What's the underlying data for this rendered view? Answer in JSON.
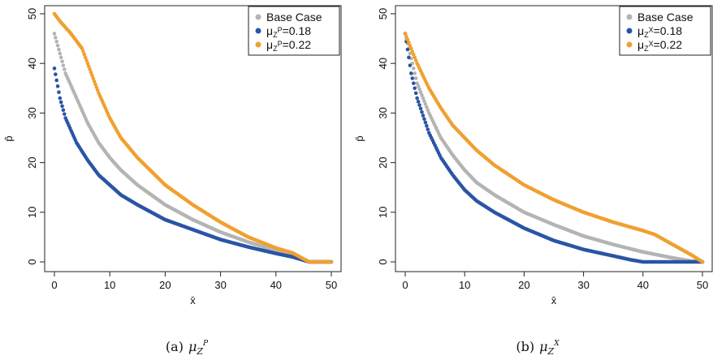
{
  "chart_data": [
    {
      "type": "scatter",
      "xlabel": "x̄",
      "ylabel": "p̄",
      "xlim": [
        0,
        50
      ],
      "ylim": [
        0,
        50
      ],
      "xticks": [
        "0",
        "10",
        "20",
        "30",
        "40",
        "50"
      ],
      "yticks": [
        "0",
        "10",
        "20",
        "30",
        "40",
        "50"
      ],
      "legend_position": "top-right",
      "caption": "(a)",
      "caption_math": {
        "base": "μ",
        "sub": "Z",
        "sup": "P"
      },
      "series": [
        {
          "name": "Base Case",
          "color": "#b4b4b4",
          "x_start": 0,
          "x_end": 46,
          "y_tail_end": 50,
          "points": [
            [
              0,
              46
            ],
            [
              1,
              42
            ],
            [
              2,
              38
            ],
            [
              4,
              33
            ],
            [
              6,
              28
            ],
            [
              8,
              24
            ],
            [
              10,
              21
            ],
            [
              12,
              18.5
            ],
            [
              15,
              15.5
            ],
            [
              20,
              11.5
            ],
            [
              25,
              8.5
            ],
            [
              30,
              6
            ],
            [
              35,
              4
            ],
            [
              40,
              2.3
            ],
            [
              43,
              1.3
            ],
            [
              46,
              0
            ]
          ]
        },
        {
          "name": "μZP=0.18",
          "legend_base": "μ",
          "legend_sub": "Z",
          "legend_sup": "P",
          "legend_value": "=0.18",
          "color": "#2a55a5",
          "x_start": 0,
          "x_end": 46,
          "y_tail_end": 50,
          "points": [
            [
              0,
              39
            ],
            [
              1,
              33
            ],
            [
              2,
              29
            ],
            [
              4,
              24
            ],
            [
              6,
              20.5
            ],
            [
              8,
              17.5
            ],
            [
              10,
              15.5
            ],
            [
              12,
              13.5
            ],
            [
              15,
              11.5
            ],
            [
              20,
              8.5
            ],
            [
              25,
              6.5
            ],
            [
              30,
              4.5
            ],
            [
              35,
              3
            ],
            [
              40,
              1.7
            ],
            [
              43,
              1
            ],
            [
              46,
              0
            ]
          ]
        },
        {
          "name": "μZP=0.22",
          "legend_base": "μ",
          "legend_sub": "Z",
          "legend_sup": "P",
          "legend_value": "=0.22",
          "color": "#f0a030",
          "x_start": 0,
          "x_end": 46,
          "y_tail_end": 50,
          "points": [
            [
              0,
              50
            ],
            [
              1,
              48.5
            ],
            [
              3,
              46
            ],
            [
              5,
              43
            ],
            [
              6,
              40
            ],
            [
              8,
              34
            ],
            [
              10,
              29
            ],
            [
              12,
              25
            ],
            [
              15,
              21
            ],
            [
              20,
              15.5
            ],
            [
              25,
              11.5
            ],
            [
              30,
              8
            ],
            [
              35,
              5
            ],
            [
              40,
              2.8
            ],
            [
              43,
              1.8
            ],
            [
              46,
              0
            ]
          ]
        }
      ]
    },
    {
      "type": "scatter",
      "xlabel": "x̄",
      "ylabel": "p̄",
      "xlim": [
        0,
        50
      ],
      "ylim": [
        0,
        50
      ],
      "xticks": [
        "0",
        "10",
        "20",
        "30",
        "40",
        "50"
      ],
      "yticks": [
        "0",
        "10",
        "20",
        "30",
        "40",
        "50"
      ],
      "legend_position": "top-right",
      "caption": "(b)",
      "caption_math": {
        "base": "μ",
        "sub": "Z",
        "sup": "X"
      },
      "series": [
        {
          "name": "Base Case",
          "color": "#b4b4b4",
          "x_start": 0,
          "x_end": 50,
          "y_tail_end": 50,
          "points": [
            [
              0,
              46
            ],
            [
              1,
              41
            ],
            [
              2,
              36
            ],
            [
              4,
              30
            ],
            [
              6,
              25
            ],
            [
              8,
              21.5
            ],
            [
              10,
              18.5
            ],
            [
              12,
              16
            ],
            [
              15,
              13.5
            ],
            [
              20,
              10
            ],
            [
              25,
              7.5
            ],
            [
              30,
              5.2
            ],
            [
              35,
              3.5
            ],
            [
              40,
              2
            ],
            [
              45,
              0.8
            ],
            [
              48,
              0.2
            ],
            [
              50,
              0
            ]
          ]
        },
        {
          "name": "μZX=0.18",
          "legend_base": "μ",
          "legend_sub": "Z",
          "legend_sup": "X",
          "legend_value": "=0.18",
          "color": "#2a55a5",
          "x_start": 0,
          "x_end": 50,
          "y_tail_end": 50,
          "points": [
            [
              0,
              46
            ],
            [
              1,
              38
            ],
            [
              2,
              33
            ],
            [
              4,
              26
            ],
            [
              6,
              21
            ],
            [
              8,
              17.5
            ],
            [
              10,
              14.5
            ],
            [
              12,
              12.3
            ],
            [
              15,
              10
            ],
            [
              20,
              6.8
            ],
            [
              25,
              4.3
            ],
            [
              30,
              2.5
            ],
            [
              35,
              1.2
            ],
            [
              38,
              0.4
            ],
            [
              40,
              0
            ],
            [
              50,
              0
            ]
          ]
        },
        {
          "name": "μZX=0.22",
          "legend_base": "μ",
          "legend_sub": "Z",
          "legend_sup": "X",
          "legend_value": "=0.22",
          "color": "#f0a030",
          "x_start": 0,
          "x_end": 50,
          "y_tail_end": 50,
          "points": [
            [
              0,
              46
            ],
            [
              1,
              43
            ],
            [
              2,
              40
            ],
            [
              4,
              35
            ],
            [
              6,
              31
            ],
            [
              8,
              27.5
            ],
            [
              10,
              25
            ],
            [
              12,
              22.5
            ],
            [
              15,
              19.5
            ],
            [
              20,
              15.5
            ],
            [
              25,
              12.5
            ],
            [
              30,
              10
            ],
            [
              35,
              8
            ],
            [
              40,
              6.3
            ],
            [
              42,
              5.5
            ],
            [
              45,
              3.5
            ],
            [
              48,
              1.5
            ],
            [
              50,
              0
            ]
          ]
        }
      ]
    }
  ]
}
